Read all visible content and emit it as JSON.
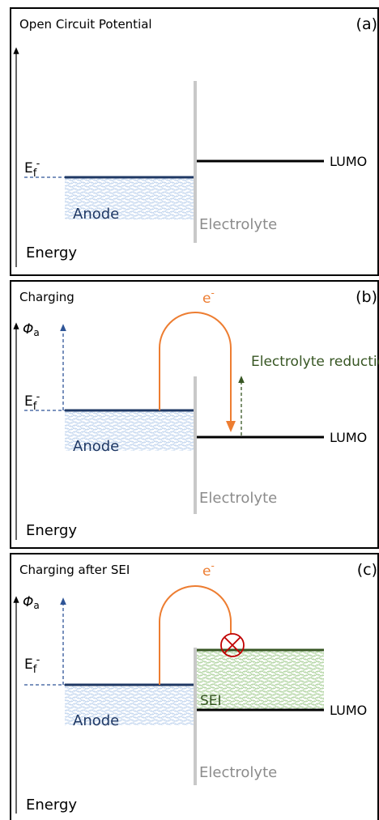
{
  "panels": [
    {
      "title": "Open Circuit Potential",
      "label": "(a)",
      "fermi": {
        "symbol": "E",
        "subscript": "f",
        "superscript": "-"
      },
      "anode": "Anode",
      "electrolyte": "Electrolyte",
      "lumo": "LUMO",
      "axis": "Energy"
    },
    {
      "title": "Charging",
      "electron": {
        "symbol": "e",
        "superscript": "-"
      },
      "label": "(b)",
      "potential": {
        "symbol": "Φ",
        "subscript": "a"
      },
      "annotation": "Electrolyte reduction",
      "fermi": {
        "symbol": "E",
        "subscript": "f",
        "superscript": "-"
      },
      "anode": "Anode",
      "lumo": "LUMO",
      "electrolyte": "Electrolyte",
      "axis": "Energy"
    },
    {
      "title": "Charging after SEI",
      "electron": {
        "symbol": "e",
        "superscript": "-"
      },
      "label": "(c)",
      "potential": {
        "symbol": "Φ",
        "subscript": "a"
      },
      "fermi": {
        "symbol": "E",
        "subscript": "f",
        "superscript": "-"
      },
      "anode": "Anode",
      "sei": "SEI",
      "lumo": "LUMO",
      "electrolyte": "Electrolyte",
      "axis": "Energy"
    }
  ]
}
